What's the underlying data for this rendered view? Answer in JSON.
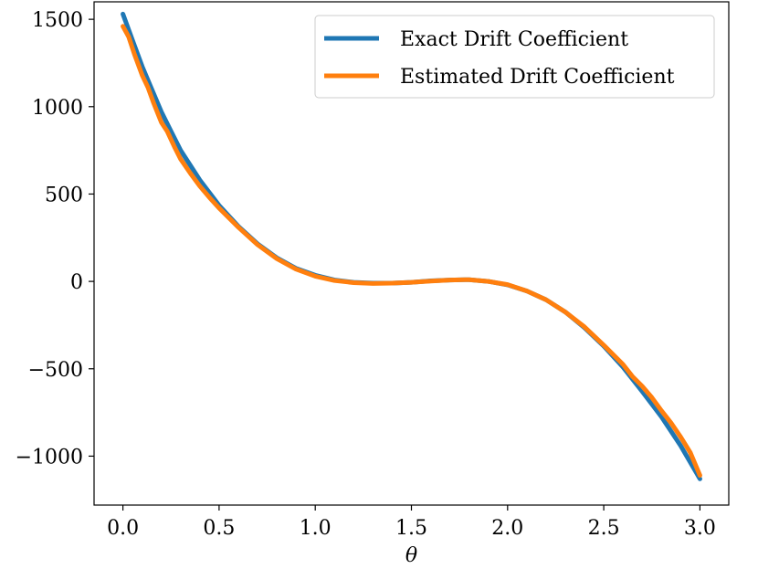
{
  "chart_data": {
    "type": "line",
    "title": "",
    "xlabel": "θ",
    "ylabel": "",
    "xlim": [
      -0.15,
      3.15
    ],
    "ylim": [
      -1280,
      1600
    ],
    "xticks": [
      0.0,
      0.5,
      1.0,
      1.5,
      2.0,
      2.5,
      3.0
    ],
    "xtick_labels": [
      "0.0",
      "0.5",
      "1.0",
      "1.5",
      "2.0",
      "2.5",
      "3.0"
    ],
    "yticks": [
      1500,
      1000,
      500,
      0,
      -500,
      -1000
    ],
    "ytick_labels": [
      "1500",
      "1000",
      "500",
      "0",
      "−500",
      "−1000"
    ],
    "grid": false,
    "legend_position": "top-right",
    "series": [
      {
        "name": "Exact Drift Coefficient",
        "color": "#1f77b4",
        "x": [
          0.0,
          0.05,
          0.1,
          0.15,
          0.2,
          0.25,
          0.3,
          0.4,
          0.5,
          0.6,
          0.7,
          0.8,
          0.9,
          1.0,
          1.1,
          1.2,
          1.3,
          1.4,
          1.5,
          1.6,
          1.7,
          1.8,
          1.9,
          2.0,
          2.1,
          2.2,
          2.3,
          2.4,
          2.5,
          2.6,
          2.7,
          2.8,
          2.9,
          3.0
        ],
        "y": [
          1530,
          1380,
          1230,
          1100,
          970,
          860,
          750,
          580,
          435,
          315,
          215,
          135,
          75,
          35,
          8,
          -5,
          -10,
          -10,
          -5,
          3,
          8,
          10,
          0,
          -20,
          -55,
          -105,
          -175,
          -265,
          -370,
          -490,
          -630,
          -775,
          -940,
          -1130
        ]
      },
      {
        "name": "Estimated Drift Coefficient",
        "color": "#ff7f0e",
        "x": [
          0.0,
          0.03,
          0.06,
          0.1,
          0.13,
          0.16,
          0.2,
          0.23,
          0.27,
          0.3,
          0.35,
          0.4,
          0.45,
          0.5,
          0.6,
          0.7,
          0.8,
          0.9,
          1.0,
          1.1,
          1.2,
          1.3,
          1.4,
          1.5,
          1.6,
          1.7,
          1.8,
          1.9,
          2.0,
          2.1,
          2.2,
          2.3,
          2.4,
          2.5,
          2.6,
          2.65,
          2.7,
          2.75,
          2.8,
          2.85,
          2.9,
          2.95,
          3.0
        ],
        "y": [
          1460,
          1400,
          1300,
          1180,
          1110,
          1020,
          910,
          860,
          765,
          700,
          620,
          545,
          480,
          420,
          310,
          210,
          130,
          70,
          30,
          5,
          -7,
          -12,
          -10,
          -5,
          2,
          8,
          10,
          0,
          -18,
          -55,
          -105,
          -175,
          -260,
          -365,
          -475,
          -545,
          -600,
          -665,
          -740,
          -810,
          -890,
          -980,
          -1110
        ]
      }
    ]
  }
}
